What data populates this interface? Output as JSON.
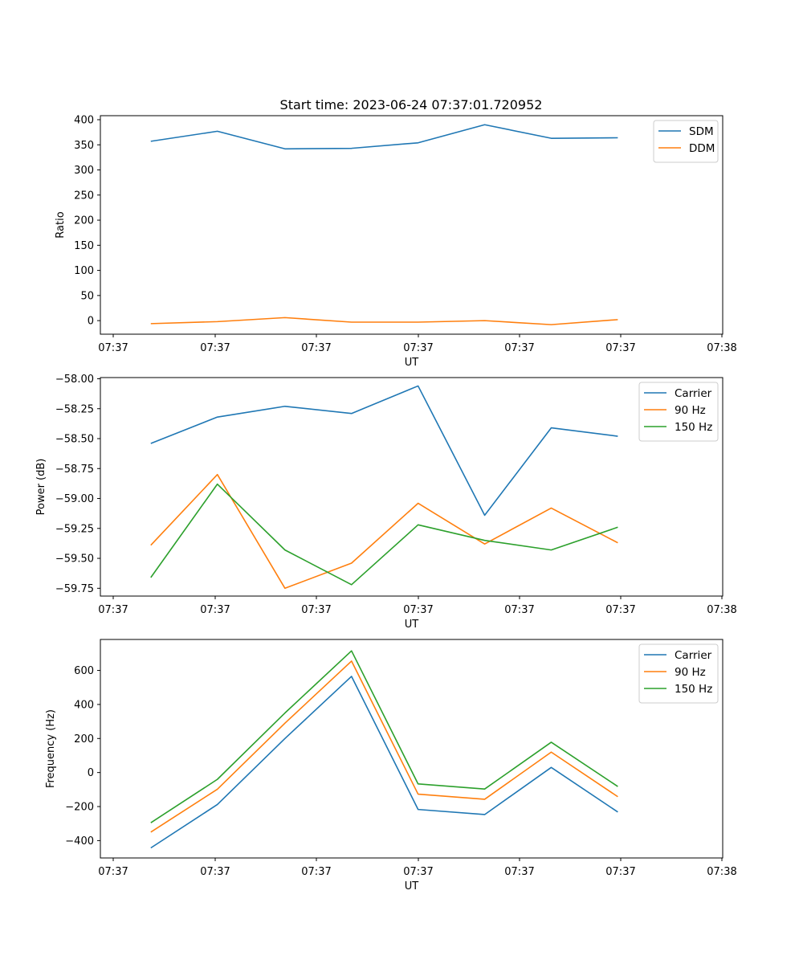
{
  "figure_title": "Start time: 2023-06-24 07:37:01.720952",
  "chart_data": [
    {
      "type": "line",
      "title": "Start time: 2023-06-24 07:37:01.720952",
      "xlabel": "UT",
      "ylabel": "Ratio",
      "x_tick_labels": [
        "07:37",
        "07:37",
        "07:37",
        "07:37",
        "07:37",
        "07:37",
        "07:38"
      ],
      "x": [
        0.5,
        1.16,
        1.83,
        2.49,
        3.15,
        3.81,
        4.47,
        5.13
      ],
      "xlim": [
        0,
        6.17
      ],
      "ylim": [
        -27,
        408
      ],
      "yticks": [
        0,
        50,
        100,
        150,
        200,
        250,
        300,
        350,
        400
      ],
      "legend_loc": "top-right",
      "series": [
        {
          "name": "SDM",
          "color": "#1f77b4",
          "values": [
            357,
            377,
            342,
            343,
            354,
            390,
            363,
            364
          ]
        },
        {
          "name": "DDM",
          "color": "#ff7f0e",
          "values": [
            -6,
            -2,
            6,
            -3,
            -3,
            0,
            -8,
            2
          ]
        }
      ]
    },
    {
      "type": "line",
      "title": "",
      "xlabel": "UT",
      "ylabel": "Power (dB)",
      "x_tick_labels": [
        "07:37",
        "07:37",
        "07:37",
        "07:37",
        "07:37",
        "07:37",
        "07:38"
      ],
      "x": [
        0.5,
        1.16,
        1.83,
        2.49,
        3.15,
        3.81,
        4.47,
        5.13
      ],
      "xlim": [
        0,
        6.17
      ],
      "ylim": [
        -59.815,
        -57.99
      ],
      "yticks": [
        -59.75,
        -59.5,
        -59.25,
        -59.0,
        -58.75,
        -58.5,
        -58.25,
        -58.0
      ],
      "ytick_labels": [
        "−59.75",
        "−59.50",
        "−59.25",
        "−59.00",
        "−58.75",
        "−58.50",
        "−58.25",
        "−58.00"
      ],
      "legend_loc": "top-right",
      "series": [
        {
          "name": "Carrier",
          "color": "#1f77b4",
          "values": [
            -58.54,
            -58.32,
            -58.23,
            -58.29,
            -58.06,
            -59.14,
            -58.41,
            -58.48
          ]
        },
        {
          "name": "90 Hz",
          "color": "#ff7f0e",
          "values": [
            -59.39,
            -58.8,
            -59.75,
            -59.54,
            -59.04,
            -59.38,
            -59.08,
            -59.37
          ]
        },
        {
          "name": "150 Hz",
          "color": "#2ca02c",
          "values": [
            -59.66,
            -58.88,
            -59.43,
            -59.72,
            -59.22,
            -59.35,
            -59.43,
            -59.24
          ]
        }
      ]
    },
    {
      "type": "line",
      "title": "",
      "xlabel": "UT",
      "ylabel": "Frequency (Hz)",
      "x_tick_labels": [
        "07:37",
        "07:37",
        "07:37",
        "07:37",
        "07:37",
        "07:37",
        "07:38"
      ],
      "x": [
        0.5,
        1.16,
        1.83,
        2.49,
        3.15,
        3.81,
        4.47,
        5.13
      ],
      "xlim": [
        0,
        6.17
      ],
      "ylim": [
        -502,
        782
      ],
      "yticks": [
        -400,
        -200,
        0,
        200,
        400,
        600
      ],
      "ytick_labels": [
        "−400",
        "−200",
        "0",
        "200",
        "400",
        "600"
      ],
      "legend_loc": "top-right",
      "series": [
        {
          "name": "Carrier",
          "color": "#1f77b4",
          "values": [
            -443,
            -188,
            200,
            565,
            -217,
            -247,
            30,
            -232
          ]
        },
        {
          "name": "90 Hz",
          "color": "#ff7f0e",
          "values": [
            -350,
            -98,
            290,
            655,
            -127,
            -157,
            120,
            -142
          ]
        },
        {
          "name": "150 Hz",
          "color": "#2ca02c",
          "values": [
            -295,
            -40,
            350,
            715,
            -67,
            -97,
            178,
            -82
          ]
        }
      ]
    }
  ]
}
